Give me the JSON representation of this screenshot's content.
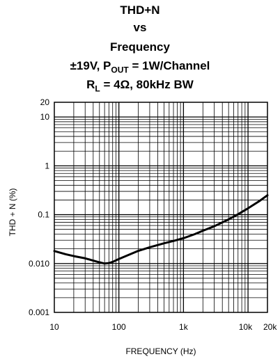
{
  "chart_data": {
    "type": "line",
    "title": {
      "line1": "THD+N",
      "line2": "vs",
      "line3": "Frequency",
      "line4_prefix": "±19V, P",
      "line4_sub": "OUT",
      "line4_suffix": " = 1W/Channel",
      "line5_prefix": "R",
      "line5_sub": "L",
      "line5_suffix": " = 4Ω, 80kHz BW"
    },
    "xlabel": "FREQUENCY (Hz)",
    "ylabel": "THD + N (%)",
    "x_scale": "log",
    "y_scale": "log",
    "xlim": [
      10,
      20000
    ],
    "ylim": [
      0.001,
      20
    ],
    "grid": true,
    "x_ticks": [
      {
        "value": 10,
        "label": "10"
      },
      {
        "value": 100,
        "label": "100"
      },
      {
        "value": 1000,
        "label": "1k"
      },
      {
        "value": 10000,
        "label": "10k"
      },
      {
        "value": 20000,
        "label": "20k"
      }
    ],
    "y_ticks": [
      {
        "value": 20,
        "label": "20"
      },
      {
        "value": 10,
        "label": "10"
      },
      {
        "value": 1,
        "label": "1"
      },
      {
        "value": 0.1,
        "label": "0.1"
      },
      {
        "value": 0.01,
        "label": "0.010"
      },
      {
        "value": 0.001,
        "label": "0.001"
      }
    ],
    "series": [
      {
        "x": [
          10,
          15,
          20,
          30,
          40,
          50,
          60,
          70,
          80,
          100,
          150,
          200,
          300,
          500,
          700,
          1000,
          1500,
          2000,
          3000,
          5000,
          7000,
          10000,
          15000,
          20000
        ],
        "y": [
          0.018,
          0.0155,
          0.0142,
          0.0128,
          0.0115,
          0.0106,
          0.01,
          0.0102,
          0.0108,
          0.0124,
          0.0155,
          0.0182,
          0.0215,
          0.026,
          0.029,
          0.033,
          0.04,
          0.047,
          0.058,
          0.08,
          0.102,
          0.135,
          0.19,
          0.25
        ]
      }
    ]
  }
}
